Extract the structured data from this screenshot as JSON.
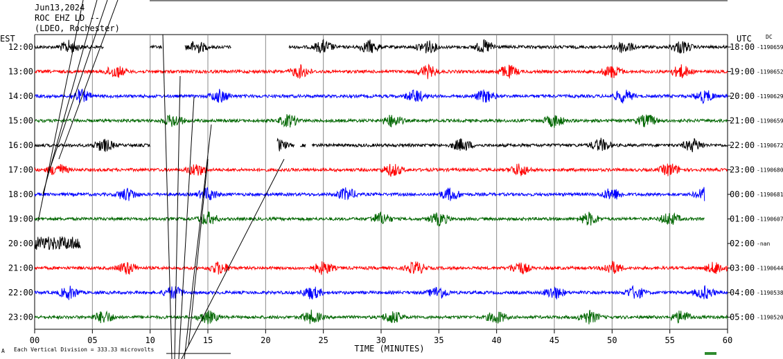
{
  "header": {
    "date": "Jun13,2024",
    "station": "ROC EHZ LD --",
    "network": "(LDEO, Rochester)"
  },
  "left_timezone": "EST",
  "right_timezone": "UTC",
  "dc_label": "DC",
  "footer": {
    "scale_text": "Each Vertical Division =  333.33 microvolts",
    "xaxis_title": "TIME (MINUTES)",
    "corner_mark": "A"
  },
  "chart_data": {
    "type": "line",
    "title": "",
    "xlabel": "TIME (MINUTES)",
    "ylabel": "",
    "xlim": [
      0,
      60
    ],
    "x_ticks": [
      "00",
      "05",
      "10",
      "15",
      "20",
      "25",
      "30",
      "35",
      "40",
      "45",
      "50",
      "55",
      "60"
    ],
    "grid": "vertical lines every 5 minutes",
    "rows": [
      {
        "est": "12:00",
        "utc": "18:00",
        "dc": "-1190659",
        "color": "#000000",
        "segments": [
          [
            0,
            6
          ],
          [
            10,
            11
          ],
          [
            13,
            17
          ],
          [
            22,
            60
          ]
        ],
        "burst_minutes": [
          3,
          14,
          25,
          29,
          34,
          39,
          51,
          56
        ]
      },
      {
        "est": "13:00",
        "utc": "19:00",
        "dc": "-1190652",
        "color": "#ff0000",
        "segments": [
          [
            0,
            60
          ]
        ],
        "burst_minutes": [
          7,
          23,
          34,
          41,
          50,
          56
        ]
      },
      {
        "est": "14:00",
        "utc": "20:00",
        "dc": "-1190629",
        "color": "#0000ff",
        "segments": [
          [
            0,
            60
          ]
        ],
        "burst_minutes": [
          4,
          16,
          33,
          39,
          51,
          58
        ]
      },
      {
        "est": "15:00",
        "utc": "21:00",
        "dc": "-1190659",
        "color": "#006600",
        "segments": [
          [
            0,
            60
          ]
        ],
        "burst_minutes": [
          12,
          22,
          31,
          45,
          53
        ]
      },
      {
        "est": "16:00",
        "utc": "22:00",
        "dc": "-1190672",
        "color": "#000000",
        "segments": [
          [
            0,
            10
          ],
          [
            21,
            22.5
          ],
          [
            23,
            23.5
          ],
          [
            24,
            60
          ]
        ],
        "burst_minutes": [
          6,
          21,
          37,
          49,
          57
        ]
      },
      {
        "est": "17:00",
        "utc": "23:00",
        "dc": "-1190680",
        "color": "#ff0000",
        "segments": [
          [
            0,
            60
          ]
        ],
        "burst_minutes": [
          2,
          14,
          31,
          42,
          55
        ]
      },
      {
        "est": "18:00",
        "utc": "00:00",
        "dc": "-1190681",
        "color": "#0000ff",
        "segments": [
          [
            0,
            58
          ]
        ],
        "burst_minutes": [
          8,
          15,
          27,
          36,
          50,
          58
        ]
      },
      {
        "est": "19:00",
        "utc": "01:00",
        "dc": "-1190607",
        "color": "#006600",
        "segments": [
          [
            0,
            58
          ]
        ],
        "burst_minutes": [
          15,
          30,
          35,
          48,
          55
        ]
      },
      {
        "est": "20:00",
        "utc": "02:00",
        "dc": "-nan",
        "color": "#000000",
        "segments": [
          [
            0,
            4
          ]
        ],
        "burst_minutes": [
          0,
          2
        ]
      },
      {
        "est": "21:00",
        "utc": "03:00",
        "dc": "-1190644",
        "color": "#ff0000",
        "segments": [
          [
            0,
            60
          ]
        ],
        "burst_minutes": [
          8,
          16,
          25,
          33,
          42,
          50,
          59
        ]
      },
      {
        "est": "22:00",
        "utc": "04:00",
        "dc": "-1190538",
        "color": "#0000ff",
        "segments": [
          [
            0,
            60
          ]
        ],
        "burst_minutes": [
          3,
          12,
          24,
          35,
          45,
          52,
          58
        ]
      },
      {
        "est": "23:00",
        "utc": "05:00",
        "dc": "-1190520",
        "color": "#006600",
        "segments": [
          [
            0,
            60
          ]
        ],
        "burst_minutes": [
          6,
          15,
          24,
          31,
          40,
          48,
          56
        ]
      }
    ]
  }
}
